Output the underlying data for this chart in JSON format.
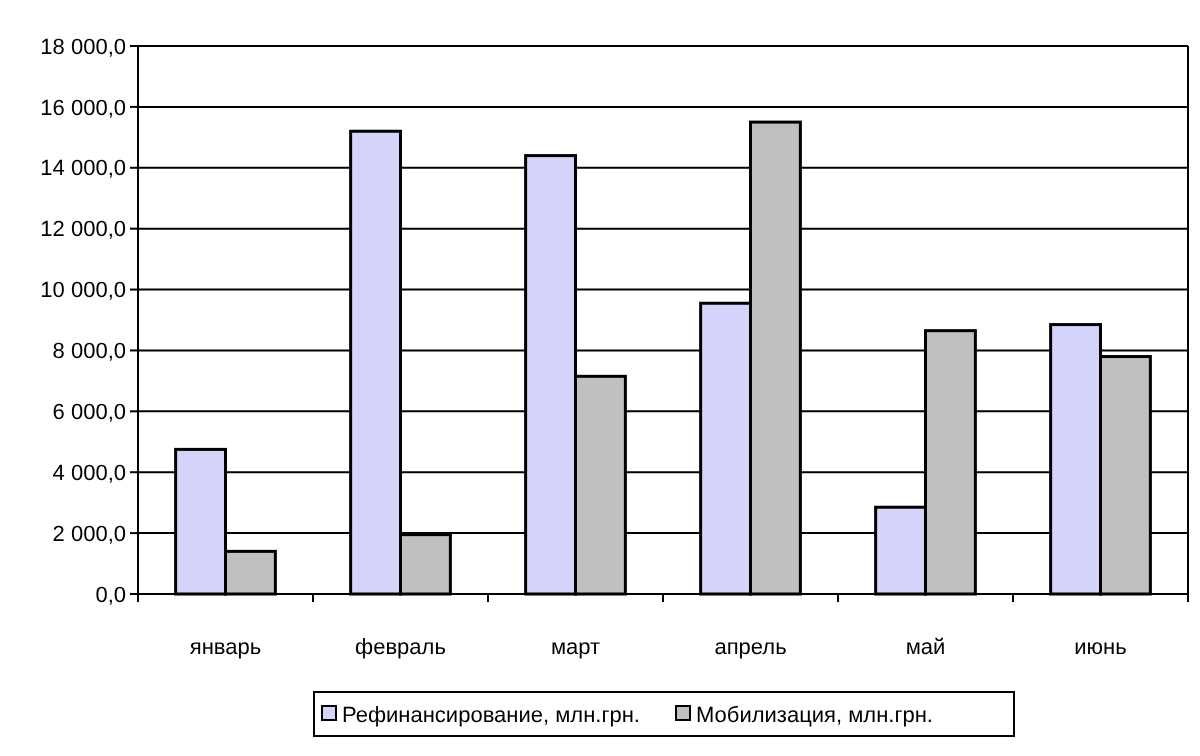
{
  "chart_data": {
    "type": "bar",
    "categories": [
      "январь",
      "февраль",
      "март",
      "апрель",
      "май",
      "июнь"
    ],
    "series": [
      {
        "name": "Рефинансирование, млн.грн.",
        "color": "#d4d4fa",
        "values": [
          4750,
          15200,
          14400,
          9550,
          2850,
          8850
        ]
      },
      {
        "name": "Мобилизация, млн.грн.",
        "color": "#c0c0c0",
        "values": [
          1400,
          1950,
          7150,
          15500,
          8650,
          7800
        ]
      }
    ],
    "ylim": [
      0,
      18000
    ],
    "yticks": [
      {
        "value": 0,
        "label": "0,0"
      },
      {
        "value": 2000,
        "label": "2 000,0"
      },
      {
        "value": 4000,
        "label": "4 000,0"
      },
      {
        "value": 6000,
        "label": "6 000,0"
      },
      {
        "value": 8000,
        "label": "8 000,0"
      },
      {
        "value": 10000,
        "label": "10 000,0"
      },
      {
        "value": 12000,
        "label": "12 000,0"
      },
      {
        "value": 14000,
        "label": "14 000,0"
      },
      {
        "value": 16000,
        "label": "16 000,0"
      },
      {
        "value": 18000,
        "label": "18 000,0"
      }
    ],
    "grid": "y",
    "legend": "bottom"
  }
}
